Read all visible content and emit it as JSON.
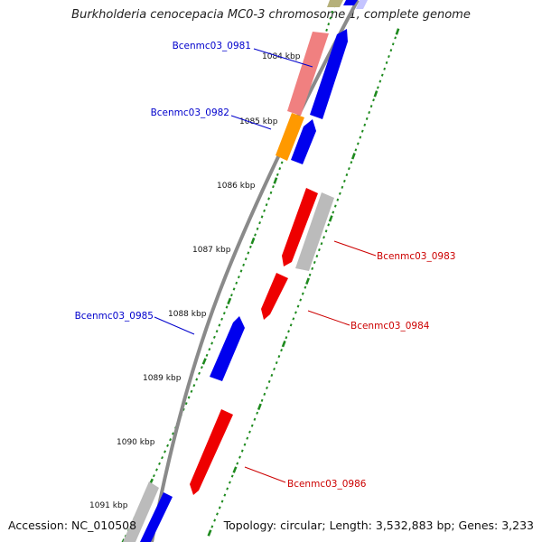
{
  "title": "Burkholderia cenocepacia MC0-3 chromosome 1, complete genome",
  "footer": {
    "accession": "Accession: NC_010508",
    "topology": "Topology: circular; Length: 3,532,883 bp; Genes: 3,233"
  },
  "scale_labels": [
    "1084 kbp",
    "1085 kbp",
    "1086 kbp",
    "1087 kbp",
    "1088 kbp",
    "1089 kbp",
    "1090 kbp",
    "1091 kbp"
  ],
  "colors": {
    "backbone": "#8a8a8a",
    "tick": "#1e8a1e",
    "forward_label": "#0000cc",
    "reverse_label": "#cc0000",
    "blue": "#0000ee",
    "red": "#ee0000",
    "gray": "#bbbbbb",
    "pink": "#f08080",
    "orange": "#ff9900",
    "olive": "#b5b07a",
    "lavender": "#c4c4ff"
  },
  "genes": [
    {
      "label": "Bcenmc03_0981",
      "strand": "forward"
    },
    {
      "label": "Bcenmc03_0982",
      "strand": "forward"
    },
    {
      "label": "Bcenmc03_0983",
      "strand": "reverse"
    },
    {
      "label": "Bcenmc03_0984",
      "strand": "reverse"
    },
    {
      "label": "Bcenmc03_0985",
      "strand": "forward"
    },
    {
      "label": "Bcenmc03_0986",
      "strand": "reverse"
    }
  ]
}
